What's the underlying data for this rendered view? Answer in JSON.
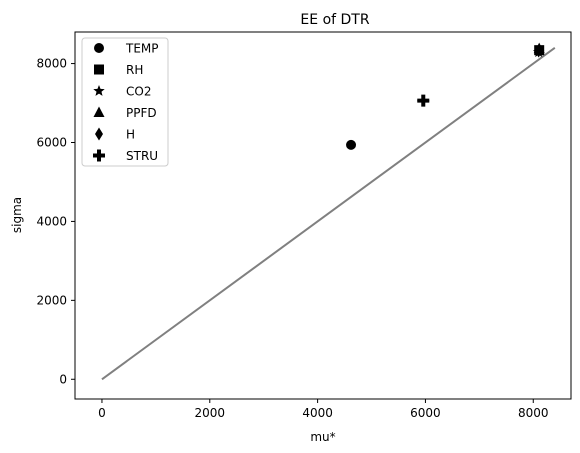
{
  "chart_data": {
    "type": "scatter",
    "title": "EE of DTR",
    "xlabel": "mu*",
    "ylabel": "sigma",
    "xlim": [
      -500,
      8700
    ],
    "ylim": [
      -500,
      8800
    ],
    "xticks": [
      0,
      2000,
      4000,
      6000,
      8000
    ],
    "yticks": [
      0,
      2000,
      4000,
      6000,
      8000
    ],
    "grid": false,
    "legend_position": "top-left",
    "series": [
      {
        "name": "TEMP",
        "marker": "circle",
        "x": [
          4620
        ],
        "y": [
          5940
        ],
        "xerr": [
          80
        ],
        "yerr": [
          60
        ]
      },
      {
        "name": "RH",
        "marker": "square",
        "x": [
          8110
        ],
        "y": [
          8340
        ],
        "xerr": [
          60
        ],
        "yerr": [
          90
        ]
      },
      {
        "name": "CO2",
        "marker": "star",
        "x": [
          8100
        ],
        "y": [
          8290
        ],
        "xerr": [
          60
        ],
        "yerr": [
          90
        ]
      },
      {
        "name": "PPFD",
        "marker": "triangle",
        "x": [
          8110
        ],
        "y": [
          8380
        ],
        "xerr": [
          60
        ],
        "yerr": [
          90
        ]
      },
      {
        "name": "H",
        "marker": "diamond",
        "x": [
          8100
        ],
        "y": [
          8320
        ],
        "xerr": [
          60
        ],
        "yerr": [
          90
        ]
      },
      {
        "name": "STRU",
        "marker": "plus",
        "x": [
          5960
        ],
        "y": [
          7060
        ],
        "xerr": [
          110
        ],
        "yerr": [
          60
        ]
      }
    ],
    "reference_line": {
      "x": [
        0,
        8400
      ],
      "y": [
        0,
        8400
      ],
      "color": "#808080"
    }
  },
  "colors": {
    "markers": "#000000",
    "reference_line": "#808080"
  }
}
